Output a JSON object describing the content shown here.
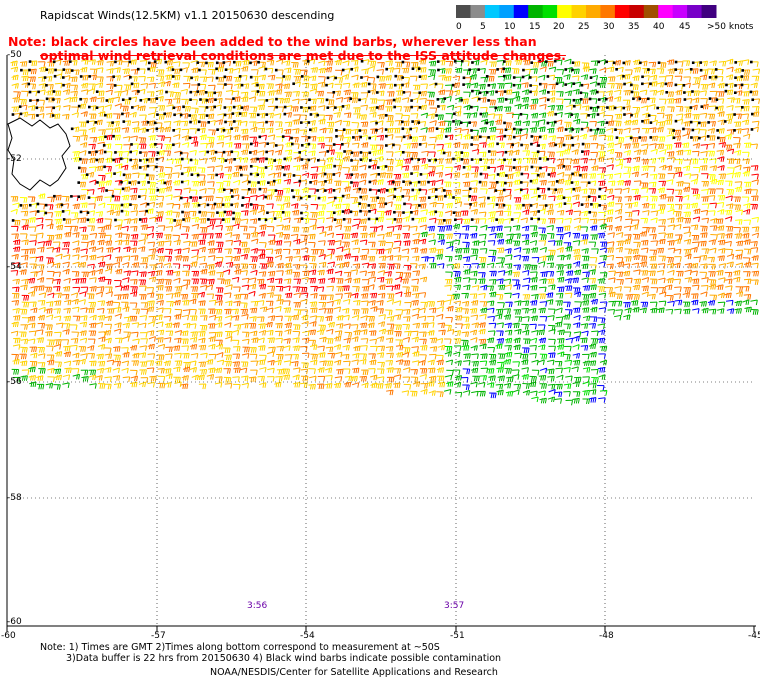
{
  "title": "Rapidscat Winds(12.5KM) v1.1 20150630 descending",
  "note": {
    "line1": "Note: black circles have been added to the wind barbs, wherever less than",
    "line2": "optimal wind retrieval conditions are met due to the ISS attitude changes."
  },
  "legend": {
    "labels": [
      "0",
      "5",
      "10",
      "15",
      "20",
      "25",
      "30",
      "35",
      "40",
      "45",
      ">50 knots"
    ],
    "colors": [
      "#4d4d4d",
      "#8c8c8c",
      "#00c8ff",
      "#00a0ff",
      "#0000ff",
      "#00b400",
      "#00e000",
      "#ffff00",
      "#ffd200",
      "#ffaa00",
      "#ff7800",
      "#ff0000",
      "#c80000",
      "#a05000",
      "#ff00ff",
      "#c800ff",
      "#7800c8",
      "#400080"
    ]
  },
  "map": {
    "lat_labels": [
      "-50",
      "-52",
      "-54",
      "-56",
      "-58",
      "-60"
    ],
    "lon_labels": [
      "-60",
      "-57",
      "-54",
      "-51",
      "-48",
      "-45"
    ],
    "times": [
      "3:56",
      "3:57"
    ]
  },
  "footer": {
    "line1": "Note: 1) Times are GMT 2)Times along bottom correspond to measurement at ~50S",
    "line2": "3)Data buffer is 22 hrs from 20150630 4) Black wind barbs indicate possible contamination",
    "credit": "NOAA/NESDIS/Center for Satellite Applications and Research"
  }
}
